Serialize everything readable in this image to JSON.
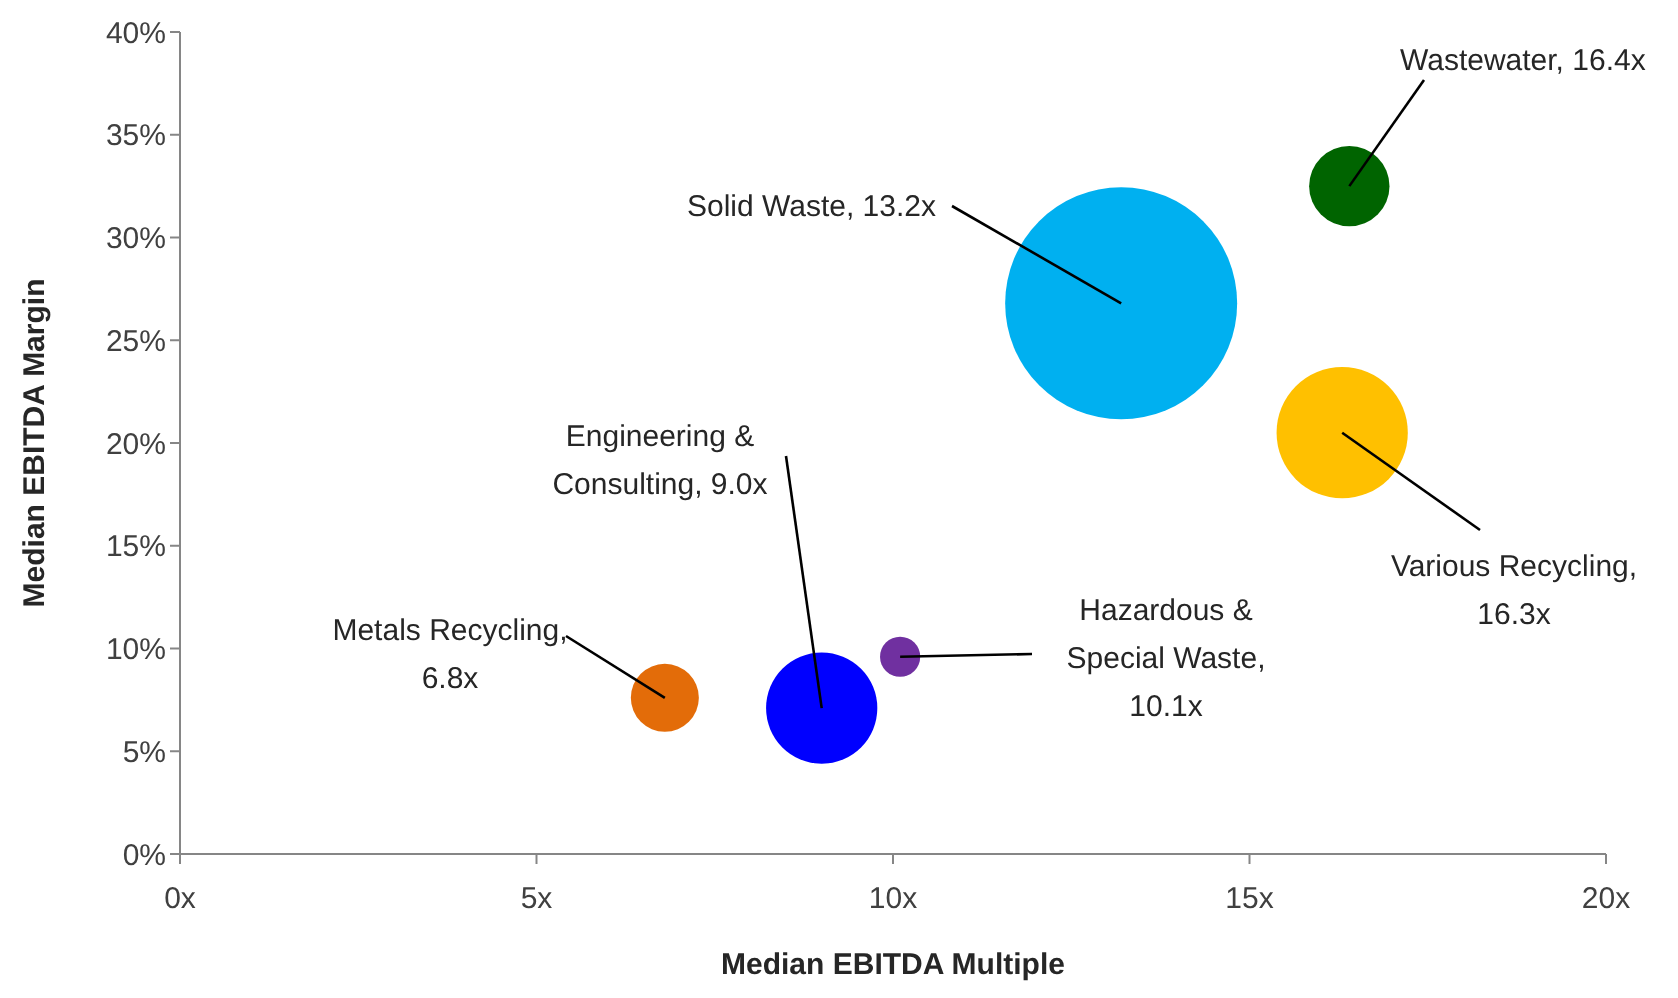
{
  "chart_data": {
    "type": "bubble",
    "xlabel": "Median EBITDA Multiple",
    "ylabel": "Median EBITDA Margin",
    "xlim": [
      0,
      20
    ],
    "xticks": [
      {
        "value": 0,
        "label": "0x"
      },
      {
        "value": 5,
        "label": "5x"
      },
      {
        "value": 10,
        "label": "10x"
      },
      {
        "value": 15,
        "label": "15x"
      },
      {
        "value": 20,
        "label": "20x"
      }
    ],
    "ylim": [
      0,
      40
    ],
    "yticks": [
      {
        "value": 0,
        "label": "0%"
      },
      {
        "value": 5,
        "label": "5%"
      },
      {
        "value": 10,
        "label": "10%"
      },
      {
        "value": 15,
        "label": "15%"
      },
      {
        "value": 20,
        "label": "20%"
      },
      {
        "value": 25,
        "label": "25%"
      },
      {
        "value": 30,
        "label": "30%"
      },
      {
        "value": 35,
        "label": "35%"
      },
      {
        "value": 40,
        "label": "40%"
      }
    ],
    "grid": false,
    "x": [
      13.2,
      16.4,
      16.3,
      10.1,
      9.0,
      6.8
    ],
    "values": [
      26.8,
      32.5,
      20.5,
      9.6,
      7.1,
      7.6
    ],
    "sizes": [
      1,
      0.12,
      0.32,
      0.03,
      0.23,
      0.086
    ],
    "colors": [
      "#00b0f0",
      "#006400",
      "#ffc000",
      "#7030a0",
      "#0000ff",
      "#e36c09"
    ],
    "annotations": [
      {
        "text": "Solid Waste, 13.2x",
        "x": 13.2,
        "y": 26.8
      },
      {
        "text": "Wastewater, 16.4x",
        "x": 16.4,
        "y": 32.5
      },
      {
        "text": "Various Recycling, 16.3x",
        "x": 16.3,
        "y": 20.5
      },
      {
        "text": "Hazardous & Special Waste, 10.1x",
        "x": 10.1,
        "y": 9.6
      },
      {
        "text": "Engineering & Consulting, 9.0x",
        "x": 9.0,
        "y": 7.1
      },
      {
        "text": "Metals Recycling, 6.8x",
        "x": 6.8,
        "y": 7.6
      }
    ]
  }
}
